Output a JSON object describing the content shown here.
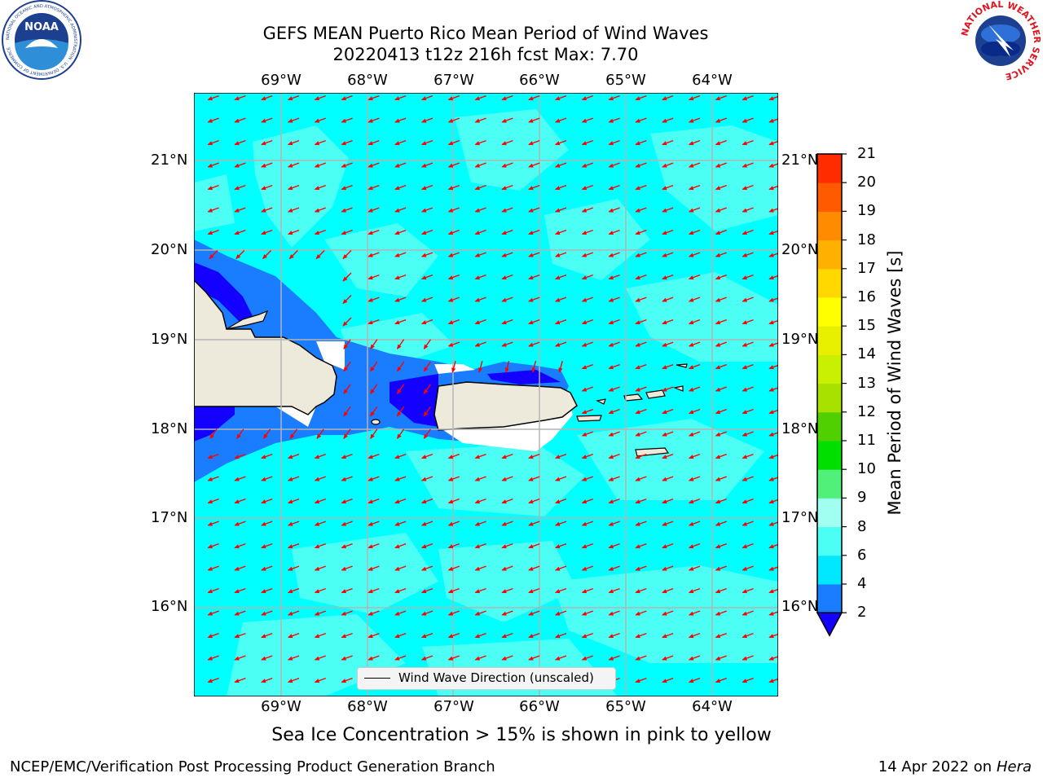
{
  "title": {
    "line1": "GEFS MEAN Puerto Rico Mean Period of Wind Waves",
    "line2": "20220413 t12z 216h fcst   Max: 7.70"
  },
  "map": {
    "lon_labels": [
      "69°W",
      "68°W",
      "67°W",
      "66°W",
      "65°W",
      "64°W"
    ],
    "lat_labels": [
      "21°N",
      "20°N",
      "19°N",
      "18°N",
      "17°N",
      "16°N"
    ],
    "field": "Mean Period of Wind Waves",
    "arrow_color": "#ff0000",
    "land_color": "#eeeadb",
    "land_labels": [
      "Hispaniola",
      "Puerto Rico",
      "Virgin Islands",
      "Vieques",
      "St. Croix"
    ]
  },
  "legend": {
    "label": "Wind Wave Direction (unscaled)"
  },
  "colorbar": {
    "title": "Mean Period of Wind Waves [s]",
    "ticks": [
      "2",
      "4",
      "6",
      "8",
      "9",
      "10",
      "11",
      "12",
      "13",
      "14",
      "15",
      "16",
      "17",
      "18",
      "19",
      "20",
      "21"
    ],
    "colors": [
      "#1a7cff",
      "#00e8ff",
      "#4cfff4",
      "#a0fff0",
      "#50f07a",
      "#00e000",
      "#50d000",
      "#a8e000",
      "#c8f000",
      "#e8f000",
      "#ffff00",
      "#ffd800",
      "#ffb000",
      "#ff8c00",
      "#ff5a00",
      "#ff2c00"
    ],
    "extend_color": "#1400ff"
  },
  "subtitle": "Sea Ice Concentration > 15% is shown in pink to yellow",
  "footer": {
    "left": "NCEP/EMC/Verification Post Processing Product Generation Branch",
    "right_prefix": "14 Apr 2022 on ",
    "right_host": "Hera"
  },
  "logos": {
    "noaa_text": "NOAA",
    "noaa_ring": "NATIONAL OCEANIC AND ATMOSPHERIC ADMINISTRATION · U.S. DEPARTMENT OF COMMERCE",
    "nws_ring": "NATIONAL WEATHER SERVICE"
  }
}
